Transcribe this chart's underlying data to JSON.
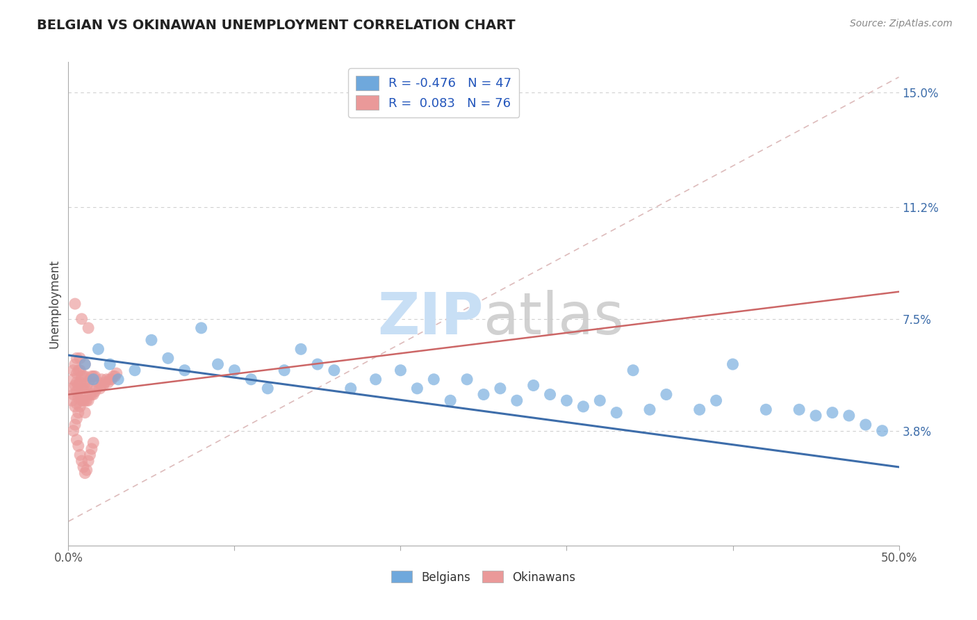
{
  "title": "BELGIAN VS OKINAWAN UNEMPLOYMENT CORRELATION CHART",
  "source_text": "Source: ZipAtlas.com",
  "ylabel": "Unemployment",
  "xlim": [
    0.0,
    0.5
  ],
  "ylim": [
    0.0,
    0.16
  ],
  "yticks": [
    0.038,
    0.075,
    0.112,
    0.15
  ],
  "ytick_labels": [
    "3.8%",
    "7.5%",
    "11.2%",
    "15.0%"
  ],
  "xtick_left_label": "0.0%",
  "xtick_right_label": "50.0%",
  "legend_r_belgian": "-0.476",
  "legend_n_belgian": "47",
  "legend_r_okinawan": "0.083",
  "legend_n_okinawan": "76",
  "blue_color": "#6fa8dc",
  "pink_color": "#ea9999",
  "blue_line_color": "#3d6daa",
  "pink_line_color": "#cc6666",
  "diag_line_color": "#ddbbbb",
  "background_color": "#ffffff",
  "grid_color": "#d0d0d0",
  "title_color": "#222222",
  "watermark_zip_color": "#c8dff5",
  "watermark_atlas_color": "#cccccc",
  "blue_scatter_x": [
    0.01,
    0.015,
    0.018,
    0.025,
    0.03,
    0.04,
    0.05,
    0.06,
    0.07,
    0.08,
    0.09,
    0.1,
    0.11,
    0.12,
    0.13,
    0.14,
    0.15,
    0.16,
    0.17,
    0.185,
    0.2,
    0.21,
    0.22,
    0.23,
    0.24,
    0.25,
    0.26,
    0.27,
    0.28,
    0.29,
    0.3,
    0.31,
    0.32,
    0.33,
    0.34,
    0.35,
    0.36,
    0.38,
    0.39,
    0.4,
    0.42,
    0.44,
    0.45,
    0.46,
    0.47,
    0.48,
    0.49
  ],
  "blue_scatter_y": [
    0.06,
    0.055,
    0.065,
    0.06,
    0.055,
    0.058,
    0.068,
    0.062,
    0.058,
    0.072,
    0.06,
    0.058,
    0.055,
    0.052,
    0.058,
    0.065,
    0.06,
    0.058,
    0.052,
    0.055,
    0.058,
    0.052,
    0.055,
    0.048,
    0.055,
    0.05,
    0.052,
    0.048,
    0.053,
    0.05,
    0.048,
    0.046,
    0.048,
    0.044,
    0.058,
    0.045,
    0.05,
    0.045,
    0.048,
    0.06,
    0.045,
    0.045,
    0.043,
    0.044,
    0.043,
    0.04,
    0.038
  ],
  "blue_line_x0": 0.0,
  "blue_line_y0": 0.063,
  "blue_line_x1": 0.5,
  "blue_line_y1": 0.026,
  "pink_line_x0": 0.0,
  "pink_line_y0": 0.05,
  "pink_line_x1": 0.5,
  "pink_line_y1": 0.084,
  "diag_line_x0": 0.0,
  "diag_line_y0": 0.008,
  "diag_line_x1": 0.5,
  "diag_line_y1": 0.155,
  "pink_cluster_x": [
    0.002,
    0.002,
    0.003,
    0.003,
    0.003,
    0.004,
    0.004,
    0.004,
    0.005,
    0.005,
    0.005,
    0.005,
    0.005,
    0.005,
    0.006,
    0.006,
    0.006,
    0.006,
    0.007,
    0.007,
    0.007,
    0.007,
    0.007,
    0.008,
    0.008,
    0.008,
    0.009,
    0.009,
    0.009,
    0.01,
    0.01,
    0.01,
    0.01,
    0.01,
    0.011,
    0.011,
    0.012,
    0.012,
    0.013,
    0.013,
    0.014,
    0.014,
    0.015,
    0.015,
    0.016,
    0.016,
    0.017,
    0.018,
    0.019,
    0.02,
    0.02,
    0.021,
    0.022,
    0.023,
    0.024,
    0.025,
    0.026,
    0.027,
    0.028,
    0.029,
    0.003,
    0.004,
    0.005,
    0.006,
    0.007,
    0.008,
    0.009,
    0.01,
    0.011,
    0.012,
    0.013,
    0.014,
    0.015,
    0.004,
    0.008,
    0.012
  ],
  "pink_cluster_y": [
    0.048,
    0.052,
    0.05,
    0.055,
    0.058,
    0.046,
    0.053,
    0.06,
    0.042,
    0.047,
    0.051,
    0.054,
    0.057,
    0.062,
    0.044,
    0.049,
    0.053,
    0.058,
    0.046,
    0.05,
    0.054,
    0.058,
    0.062,
    0.048,
    0.052,
    0.056,
    0.048,
    0.052,
    0.056,
    0.044,
    0.048,
    0.052,
    0.056,
    0.06,
    0.048,
    0.053,
    0.048,
    0.054,
    0.05,
    0.055,
    0.05,
    0.056,
    0.05,
    0.056,
    0.051,
    0.056,
    0.052,
    0.054,
    0.052,
    0.053,
    0.055,
    0.053,
    0.054,
    0.055,
    0.054,
    0.055,
    0.055,
    0.056,
    0.056,
    0.057,
    0.038,
    0.04,
    0.035,
    0.033,
    0.03,
    0.028,
    0.026,
    0.024,
    0.025,
    0.028,
    0.03,
    0.032,
    0.034,
    0.08,
    0.075,
    0.072
  ]
}
